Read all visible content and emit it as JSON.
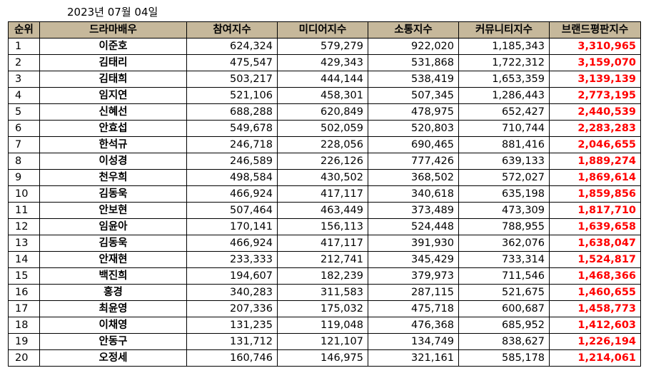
{
  "date": "2023년 07월 04일",
  "headers": [
    "순위",
    "드라마배우",
    "참여지수",
    "미디어지수",
    "소통지수",
    "커뮤니티지수",
    "브랜드평판지수"
  ],
  "rows": [
    [
      "1",
      "이준호",
      "624,324",
      "579,279",
      "922,020",
      "1,185,343",
      "3,310,965"
    ],
    [
      "2",
      "김태리",
      "475,547",
      "429,343",
      "531,868",
      "1,722,312",
      "3,159,070"
    ],
    [
      "3",
      "김태희",
      "503,217",
      "444,144",
      "538,419",
      "1,653,359",
      "3,139,139"
    ],
    [
      "4",
      "임지연",
      "521,106",
      "458,301",
      "507,345",
      "1,286,443",
      "2,773,195"
    ],
    [
      "5",
      "신혜선",
      "688,288",
      "620,849",
      "478,975",
      "652,427",
      "2,440,539"
    ],
    [
      "6",
      "안효섭",
      "549,678",
      "502,059",
      "520,803",
      "710,744",
      "2,283,283"
    ],
    [
      "7",
      "한석규",
      "246,718",
      "228,056",
      "690,465",
      "881,416",
      "2,046,655"
    ],
    [
      "8",
      "이성경",
      "246,589",
      "226,126",
      "777,426",
      "639,133",
      "1,889,274"
    ],
    [
      "9",
      "천우희",
      "498,584",
      "430,502",
      "368,502",
      "572,027",
      "1,869,614"
    ],
    [
      "10",
      "김동욱",
      "466,924",
      "417,117",
      "340,618",
      "635,198",
      "1,859,856"
    ],
    [
      "11",
      "안보현",
      "507,464",
      "463,449",
      "373,489",
      "473,309",
      "1,817,710"
    ],
    [
      "12",
      "임윤아",
      "170,141",
      "156,113",
      "524,448",
      "788,955",
      "1,639,658"
    ],
    [
      "13",
      "김동욱",
      "466,924",
      "417,117",
      "391,930",
      "362,076",
      "1,638,047"
    ],
    [
      "14",
      "안재현",
      "233,333",
      "212,741",
      "345,429",
      "733,314",
      "1,524,817"
    ],
    [
      "15",
      "백진희",
      "194,607",
      "182,239",
      "379,973",
      "711,546",
      "1,468,366"
    ],
    [
      "16",
      "홍경",
      "340,283",
      "311,583",
      "287,115",
      "521,675",
      "1,460,655"
    ],
    [
      "17",
      "최윤영",
      "207,336",
      "175,032",
      "475,718",
      "600,687",
      "1,458,773"
    ],
    [
      "18",
      "이채영",
      "131,235",
      "119,048",
      "476,368",
      "685,952",
      "1,412,603"
    ],
    [
      "19",
      "안동구",
      "131,712",
      "121,107",
      "134,749",
      "838,627",
      "1,226,194"
    ],
    [
      "20",
      "오정세",
      "160,746",
      "146,975",
      "321,161",
      "585,178",
      "1,214,061"
    ]
  ]
}
